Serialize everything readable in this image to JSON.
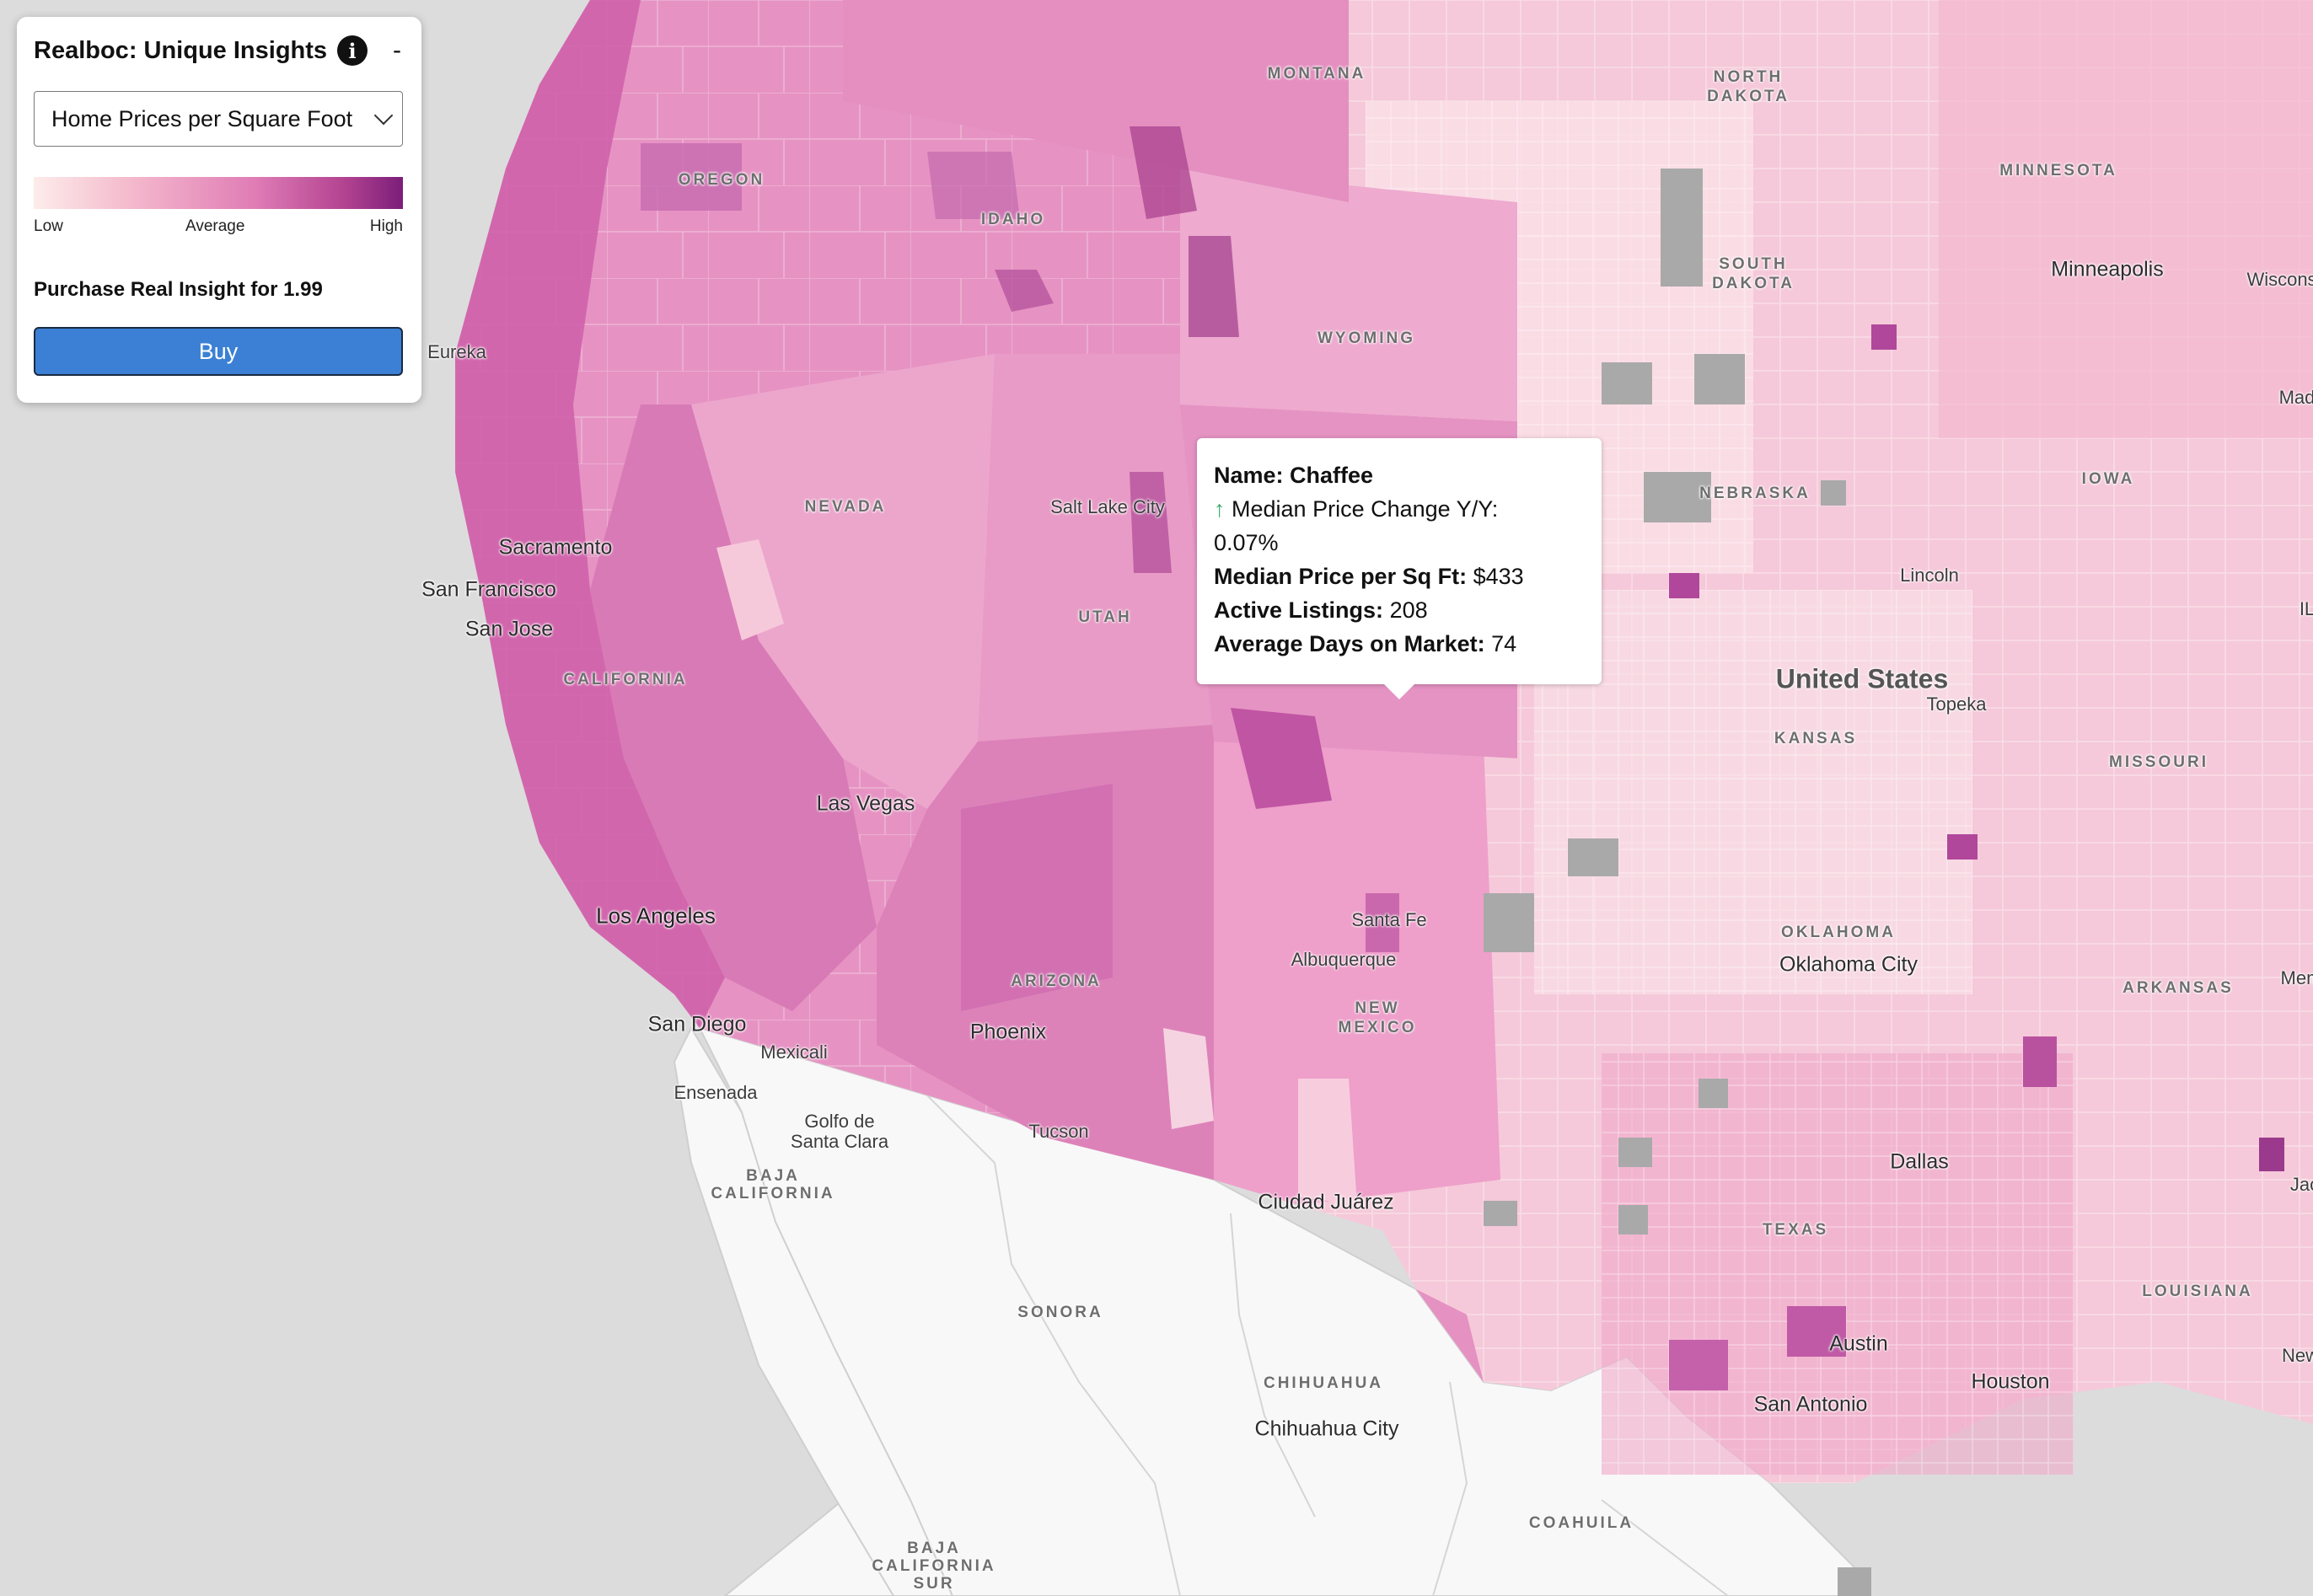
{
  "panel": {
    "title": "Realboc: Unique Insights",
    "info_icon": "info-icon",
    "minimize_label": "-",
    "metric_select": "Home Prices per Square Foot",
    "legend": {
      "low": "Low",
      "average": "Average",
      "high": "High",
      "gradient_colors": [
        "#fdecea",
        "#f3b6cb",
        "#e07cb6",
        "#b1418f",
        "#7b1e7a"
      ]
    },
    "purchase_text": "Purchase Real Insight for 1.99",
    "buy_label": "Buy",
    "buy_color": "#3b80d4"
  },
  "tooltip": {
    "name_label": "Name:",
    "name_value": "Chaffee",
    "change_icon": "arrow-up-icon",
    "change_icon_glyph": "↑",
    "change_label": "Median Price Change Y/Y:",
    "change_value": "0.07%",
    "price_label": "Median Price per Sq Ft:",
    "price_value": "$433",
    "listings_label": "Active Listings:",
    "listings_value": "208",
    "days_label": "Average Days on Market:",
    "days_value": "74"
  },
  "map_labels": {
    "states": [
      {
        "id": "montana",
        "text": "MONTANA"
      },
      {
        "id": "north-dakota-1",
        "text": "NORTH"
      },
      {
        "id": "north-dakota-2",
        "text": "DAKOTA"
      },
      {
        "id": "minnesota",
        "text": "MINNESOTA"
      },
      {
        "id": "oregon",
        "text": "OREGON"
      },
      {
        "id": "idaho",
        "text": "IDAHO"
      },
      {
        "id": "south-dakota-1",
        "text": "SOUTH"
      },
      {
        "id": "south-dakota-2",
        "text": "DAKOTA"
      },
      {
        "id": "wyoming",
        "text": "WYOMING"
      },
      {
        "id": "nebraska",
        "text": "NEBRASKA"
      },
      {
        "id": "iowa",
        "text": "IOWA"
      },
      {
        "id": "nevada",
        "text": "NEVADA"
      },
      {
        "id": "utah",
        "text": "UTAH"
      },
      {
        "id": "california",
        "text": "CALIFORNIA"
      },
      {
        "id": "kansas",
        "text": "KANSAS"
      },
      {
        "id": "missouri",
        "text": "MISSOURI"
      },
      {
        "id": "oklahoma",
        "text": "OKLAHOMA"
      },
      {
        "id": "arkansas",
        "text": "ARKANSAS"
      },
      {
        "id": "arizona",
        "text": "ARIZONA"
      },
      {
        "id": "new-mexico-1",
        "text": "NEW"
      },
      {
        "id": "new-mexico-2",
        "text": "MEXICO"
      },
      {
        "id": "texas",
        "text": "TEXAS"
      },
      {
        "id": "louisiana",
        "text": "LOUISIANA"
      },
      {
        "id": "baja-california",
        "text": "BAJA"
      },
      {
        "id": "baja-california-2",
        "text": "CALIFORNIA"
      },
      {
        "id": "sonora",
        "text": "SONORA"
      },
      {
        "id": "chihuahua",
        "text": "CHIHUAHUA"
      },
      {
        "id": "coahuila",
        "text": "COAHUILA"
      },
      {
        "id": "baja-sur-1",
        "text": "BAJA"
      },
      {
        "id": "baja-sur-2",
        "text": "CALIFORNIA"
      },
      {
        "id": "baja-sur-3",
        "text": "SUR"
      }
    ],
    "cities": [
      {
        "id": "minneapolis",
        "text": "Minneapolis"
      },
      {
        "id": "wiscons",
        "text": "Wiscons"
      },
      {
        "id": "mad",
        "text": "Mad"
      },
      {
        "id": "eureka",
        "text": "Eureka"
      },
      {
        "id": "salt-lake-city",
        "text": "Salt Lake City"
      },
      {
        "id": "sacramento",
        "text": "Sacramento"
      },
      {
        "id": "san-francisco",
        "text": "San Francisco"
      },
      {
        "id": "san-jose",
        "text": "San Jose"
      },
      {
        "id": "lincoln",
        "text": "Lincoln"
      },
      {
        "id": "il",
        "text": "IL"
      },
      {
        "id": "topeka",
        "text": "Topeka"
      },
      {
        "id": "las-vegas",
        "text": "Las Vegas"
      },
      {
        "id": "los-angeles",
        "text": "Los Angeles"
      },
      {
        "id": "santa-fe",
        "text": "Santa Fe"
      },
      {
        "id": "albuquerque",
        "text": "Albuquerque"
      },
      {
        "id": "oklahoma-city",
        "text": "Oklahoma City"
      },
      {
        "id": "mem",
        "text": "Mem"
      },
      {
        "id": "phoenix",
        "text": "Phoenix"
      },
      {
        "id": "san-diego",
        "text": "San Diego"
      },
      {
        "id": "mexicali",
        "text": "Mexicali"
      },
      {
        "id": "ensenada",
        "text": "Ensenada"
      },
      {
        "id": "golfo-1",
        "text": "Golfo de"
      },
      {
        "id": "golfo-2",
        "text": "Santa Clara"
      },
      {
        "id": "tucson",
        "text": "Tucson"
      },
      {
        "id": "dallas",
        "text": "Dallas"
      },
      {
        "id": "jac",
        "text": "Jac"
      },
      {
        "id": "ciudad-juarez",
        "text": "Ciudad Juárez"
      },
      {
        "id": "austin",
        "text": "Austin"
      },
      {
        "id": "houston",
        "text": "Houston"
      },
      {
        "id": "new",
        "text": "New"
      },
      {
        "id": "san-antonio",
        "text": "San Antonio"
      },
      {
        "id": "chihuahua-city",
        "text": "Chihuahua City"
      }
    ],
    "country": "United States"
  }
}
